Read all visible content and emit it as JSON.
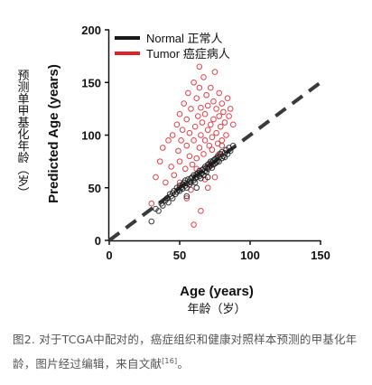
{
  "chart_data": {
    "type": "scatter",
    "xlabel": "Age (years)",
    "xlabel_cn": "年龄（岁）",
    "ylabel": "Predicted Age (years)",
    "ylabel_cn": "预测单甲基化年龄（岁）",
    "xlim": [
      0,
      150
    ],
    "ylim": [
      0,
      200
    ],
    "xticks": [
      0,
      50,
      100,
      150
    ],
    "yticks": [
      0,
      50,
      100,
      150,
      200
    ],
    "grid": false,
    "legend_placement": "top-left",
    "reference_line": {
      "style": "dashed",
      "x": [
        0,
        150
      ],
      "y": [
        0,
        150
      ]
    },
    "series": [
      {
        "name": "Normal 正常人",
        "color": "#1a1a1a",
        "values_x": [
          30,
          33,
          35,
          37,
          38,
          40,
          41,
          42,
          43,
          44,
          45,
          45,
          46,
          47,
          48,
          48,
          49,
          50,
          50,
          51,
          52,
          52,
          53,
          54,
          54,
          55,
          55,
          56,
          57,
          57,
          58,
          58,
          59,
          60,
          60,
          61,
          61,
          62,
          62,
          63,
          64,
          64,
          65,
          65,
          66,
          66,
          67,
          67,
          68,
          68,
          69,
          69,
          70,
          70,
          71,
          71,
          72,
          72,
          73,
          73,
          74,
          74,
          75,
          75,
          76,
          76,
          77,
          77,
          78,
          78,
          79,
          80,
          80,
          81,
          82,
          82,
          83,
          84,
          85,
          86,
          88,
          62,
          55,
          70
        ],
        "values_y": [
          18,
          30,
          28,
          35,
          33,
          38,
          40,
          36,
          44,
          42,
          45,
          40,
          47,
          44,
          46,
          50,
          48,
          52,
          47,
          50,
          53,
          49,
          55,
          52,
          57,
          54,
          50,
          58,
          56,
          53,
          59,
          55,
          60,
          57,
          62,
          59,
          55,
          63,
          60,
          64,
          61,
          66,
          63,
          59,
          67,
          64,
          68,
          62,
          70,
          66,
          69,
          65,
          72,
          68,
          73,
          70,
          71,
          75,
          74,
          69,
          76,
          72,
          77,
          73,
          78,
          74,
          80,
          76,
          79,
          75,
          82,
          78,
          84,
          80,
          83,
          79,
          86,
          82,
          88,
          85,
          90,
          50,
          42,
          60
        ]
      },
      {
        "name": "Tumor 癌症病人",
        "color": "#e0202a",
        "values_x": [
          30,
          33,
          36,
          38,
          40,
          42,
          44,
          45,
          46,
          48,
          49,
          50,
          50,
          51,
          52,
          53,
          54,
          55,
          55,
          56,
          57,
          57,
          58,
          59,
          60,
          60,
          61,
          62,
          62,
          63,
          64,
          64,
          65,
          65,
          66,
          67,
          67,
          68,
          68,
          69,
          70,
          70,
          71,
          72,
          72,
          73,
          74,
          74,
          75,
          76,
          76,
          77,
          78,
          78,
          79,
          80,
          80,
          81,
          82,
          83,
          84,
          85,
          86,
          88,
          60,
          65,
          70,
          75,
          58,
          62,
          68,
          72,
          78,
          55,
          80,
          64,
          50,
          73
        ],
        "values_y": [
          35,
          60,
          75,
          88,
          55,
          95,
          70,
          100,
          62,
          110,
          85,
          120,
          75,
          95,
          105,
          130,
          68,
          115,
          90,
          140,
          80,
          102,
          125,
          72,
          150,
          95,
          108,
          135,
          78,
          118,
          145,
          88,
          126,
          100,
          112,
          155,
          82,
          120,
          95,
          138,
          105,
          128,
          90,
          145,
          110,
          98,
          132,
          115,
          160,
          102,
          125,
          92,
          140,
          118,
          108,
          130,
          95,
          122,
          112,
          100,
          135,
          118,
          125,
          110,
          15,
          28,
          50,
          60,
          48,
          68,
          58,
          72,
          82,
          40,
          90,
          165,
          55,
          86
        ]
      }
    ]
  },
  "caption": {
    "text": "图2. 对于TCGA中配对的，癌症组织和健康对照样本预测的甲基化年龄，图片经过编辑，来自文献",
    "ref": "[16]",
    "end": "。"
  }
}
